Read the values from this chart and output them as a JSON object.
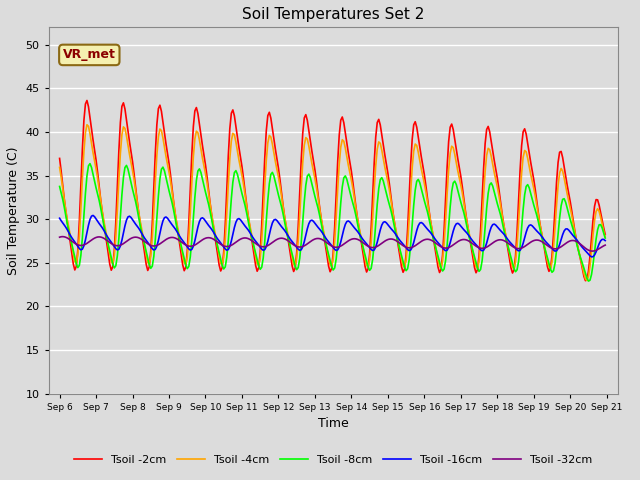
{
  "title": "Soil Temperatures Set 2",
  "xlabel": "Time",
  "ylabel": "Soil Temperature (C)",
  "ylim": [
    10,
    52
  ],
  "annotation": "VR_met",
  "background_color": "#dcdcdc",
  "plot_bg_color": "#dcdcdc",
  "grid_color": "white",
  "x_tick_labels": [
    "Sep 6",
    "Sep 7",
    "Sep 8",
    "Sep 9",
    "Sep 10",
    "Sep 11",
    "Sep 12",
    "Sep 13",
    "Sep 14",
    "Sep 15",
    "Sep 16",
    "Sep 17",
    "Sep 18",
    "Sep 19",
    "Sep 20",
    "Sep 21"
  ],
  "series_colors": [
    "red",
    "orange",
    "lime",
    "blue",
    "purple"
  ],
  "series_labels": [
    "Tsoil -2cm",
    "Tsoil -4cm",
    "Tsoil -8cm",
    "Tsoil -16cm",
    "Tsoil -32cm"
  ],
  "line_width": 1.2,
  "figsize": [
    6.4,
    4.8
  ],
  "dpi": 100
}
